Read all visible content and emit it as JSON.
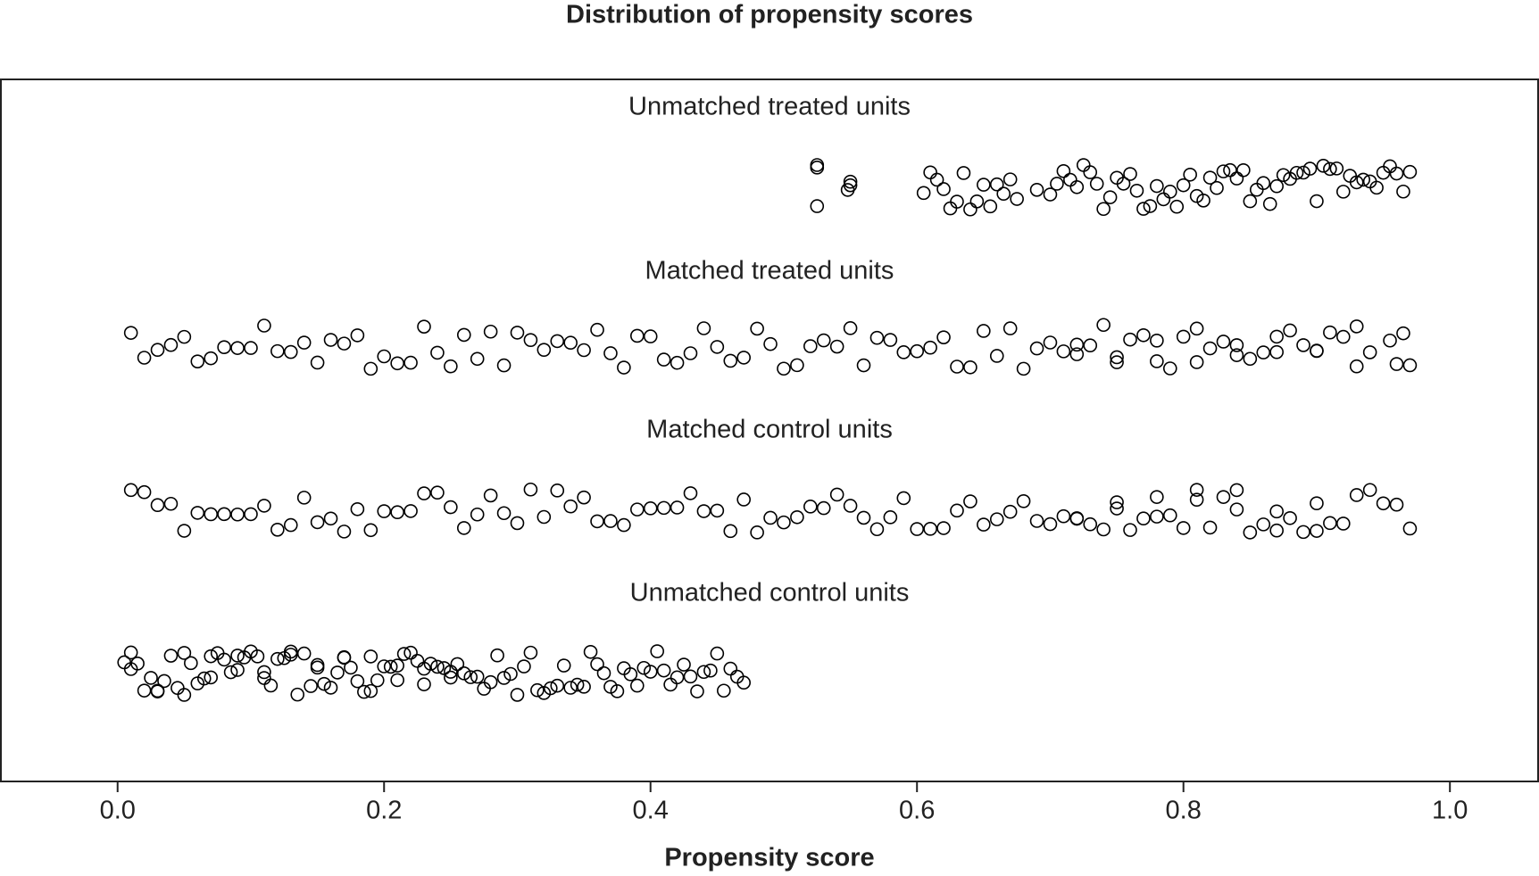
{
  "chart_data": {
    "type": "jitter",
    "title": "Distribution of propensity scores",
    "x_label": "Propensity score",
    "xlim": [
      -0.0876,
      1.0662
    ],
    "xticks": [
      {
        "value": 0,
        "label": "0.0"
      },
      0.2,
      0.4,
      0.6,
      0.8,
      {
        "value": 1,
        "label": "1.0"
      }
    ],
    "color": "#000000",
    "series": [
      {
        "name": "Unmatched treated units",
        "values": [
          0.525,
          0.525,
          0.525,
          0.548,
          0.55,
          0.55,
          0.605,
          0.61,
          0.615,
          0.62,
          0.625,
          0.63,
          0.635,
          0.64,
          0.645,
          0.65,
          0.655,
          0.66,
          0.665,
          0.67,
          0.675,
          0.69,
          0.7,
          0.705,
          0.71,
          0.715,
          0.72,
          0.725,
          0.73,
          0.735,
          0.74,
          0.745,
          0.75,
          0.755,
          0.76,
          0.765,
          0.77,
          0.775,
          0.78,
          0.785,
          0.79,
          0.795,
          0.8,
          0.805,
          0.81,
          0.815,
          0.82,
          0.825,
          0.83,
          0.835,
          0.84,
          0.845,
          0.85,
          0.855,
          0.86,
          0.865,
          0.87,
          0.875,
          0.88,
          0.885,
          0.89,
          0.895,
          0.9,
          0.905,
          0.91,
          0.915,
          0.92,
          0.925,
          0.93,
          0.935,
          0.94,
          0.945,
          0.95,
          0.955,
          0.96,
          0.965,
          0.97
        ]
      },
      {
        "name": "Matched treated units",
        "values": [
          0.01,
          0.02,
          0.03,
          0.04,
          0.05,
          0.06,
          0.07,
          0.08,
          0.09,
          0.1,
          0.11,
          0.12,
          0.13,
          0.14,
          0.15,
          0.16,
          0.17,
          0.18,
          0.19,
          0.2,
          0.21,
          0.22,
          0.23,
          0.24,
          0.25,
          0.26,
          0.27,
          0.28,
          0.29,
          0.3,
          0.31,
          0.32,
          0.33,
          0.34,
          0.35,
          0.36,
          0.37,
          0.38,
          0.39,
          0.4,
          0.41,
          0.42,
          0.43,
          0.44,
          0.45,
          0.46,
          0.47,
          0.48,
          0.49,
          0.5,
          0.51,
          0.52,
          0.53,
          0.54,
          0.55,
          0.56,
          0.57,
          0.58,
          0.59,
          0.6,
          0.61,
          0.62,
          0.63,
          0.64,
          0.65,
          0.66,
          0.67,
          0.68,
          0.69,
          0.7,
          0.71,
          0.72,
          0.73,
          0.74,
          0.75,
          0.76,
          0.77,
          0.78,
          0.79,
          0.8,
          0.81,
          0.82,
          0.83,
          0.84,
          0.85,
          0.86,
          0.87,
          0.88,
          0.89,
          0.9,
          0.91,
          0.92,
          0.93,
          0.94,
          0.72,
          0.75,
          0.78,
          0.81,
          0.84,
          0.87,
          0.9,
          0.93,
          0.955,
          0.96,
          0.965,
          0.97
        ]
      },
      {
        "name": "Matched control units",
        "values": [
          0.01,
          0.02,
          0.03,
          0.04,
          0.05,
          0.06,
          0.07,
          0.08,
          0.09,
          0.1,
          0.11,
          0.12,
          0.13,
          0.14,
          0.15,
          0.16,
          0.17,
          0.18,
          0.19,
          0.2,
          0.21,
          0.22,
          0.23,
          0.24,
          0.25,
          0.26,
          0.27,
          0.28,
          0.29,
          0.3,
          0.31,
          0.32,
          0.33,
          0.34,
          0.35,
          0.36,
          0.37,
          0.38,
          0.39,
          0.4,
          0.41,
          0.42,
          0.43,
          0.44,
          0.45,
          0.46,
          0.47,
          0.48,
          0.49,
          0.5,
          0.51,
          0.52,
          0.53,
          0.54,
          0.55,
          0.56,
          0.57,
          0.58,
          0.59,
          0.6,
          0.61,
          0.62,
          0.63,
          0.64,
          0.65,
          0.66,
          0.67,
          0.68,
          0.69,
          0.7,
          0.71,
          0.72,
          0.73,
          0.74,
          0.75,
          0.76,
          0.77,
          0.78,
          0.79,
          0.8,
          0.81,
          0.82,
          0.83,
          0.84,
          0.85,
          0.86,
          0.87,
          0.88,
          0.89,
          0.9,
          0.91,
          0.92,
          0.93,
          0.72,
          0.75,
          0.78,
          0.81,
          0.84,
          0.87,
          0.9,
          0.94,
          0.95,
          0.96,
          0.97
        ]
      },
      {
        "name": "Unmatched control units",
        "values": [
          0.005,
          0.01,
          0.015,
          0.02,
          0.025,
          0.03,
          0.035,
          0.04,
          0.045,
          0.05,
          0.055,
          0.06,
          0.065,
          0.07,
          0.075,
          0.08,
          0.085,
          0.09,
          0.095,
          0.1,
          0.105,
          0.11,
          0.115,
          0.12,
          0.125,
          0.13,
          0.135,
          0.14,
          0.145,
          0.15,
          0.155,
          0.16,
          0.165,
          0.17,
          0.175,
          0.18,
          0.185,
          0.19,
          0.195,
          0.2,
          0.205,
          0.21,
          0.215,
          0.22,
          0.225,
          0.23,
          0.235,
          0.24,
          0.245,
          0.25,
          0.255,
          0.26,
          0.265,
          0.27,
          0.275,
          0.28,
          0.285,
          0.29,
          0.295,
          0.3,
          0.305,
          0.31,
          0.315,
          0.32,
          0.325,
          0.33,
          0.335,
          0.34,
          0.345,
          0.35,
          0.355,
          0.36,
          0.365,
          0.37,
          0.375,
          0.38,
          0.385,
          0.39,
          0.395,
          0.4,
          0.405,
          0.41,
          0.415,
          0.42,
          0.425,
          0.43,
          0.435,
          0.44,
          0.445,
          0.45,
          0.455,
          0.46,
          0.465,
          0.47,
          0.01,
          0.03,
          0.05,
          0.07,
          0.09,
          0.11,
          0.13,
          0.15,
          0.17,
          0.19,
          0.21,
          0.23,
          0.25
        ]
      }
    ]
  }
}
